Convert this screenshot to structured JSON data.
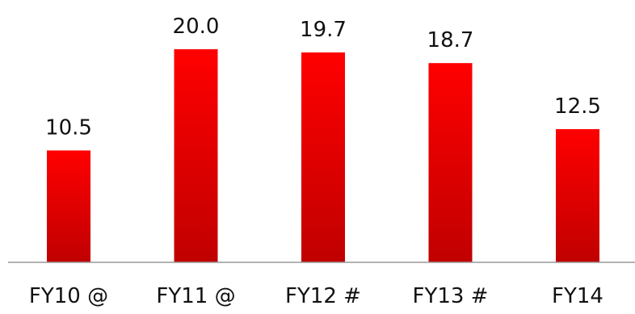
{
  "chart_data": {
    "type": "bar",
    "title": "",
    "xlabel": "",
    "ylabel": "",
    "categories": [
      "FY10 @",
      "FY11 @",
      "FY12 #",
      "FY13 #",
      "FY14"
    ],
    "values": [
      10.5,
      20.0,
      19.7,
      18.7,
      12.5
    ],
    "data_labels": [
      "10.5",
      "20.0",
      "19.7",
      "18.7",
      "12.5"
    ],
    "ylim": [
      0,
      22
    ],
    "grid": false,
    "legend": "none",
    "colors": {
      "bar_top": "#ff0000",
      "bar_bottom": "#c00000",
      "axis": "#999999",
      "text": "#111111"
    }
  }
}
